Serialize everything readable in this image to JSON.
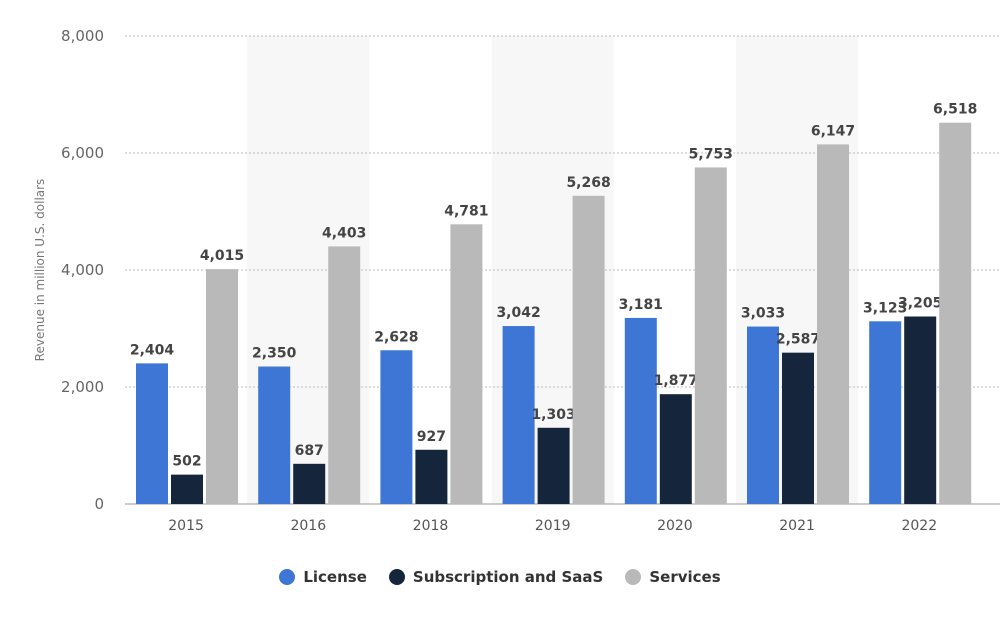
{
  "chart_data": {
    "type": "bar",
    "title": "",
    "xlabel": "",
    "ylabel": "Revenue in million U.S. dollars",
    "ylim": [
      0,
      8000
    ],
    "yticks": [
      0,
      2000,
      4000,
      6000,
      8000
    ],
    "ytick_labels": [
      "0",
      "2,000",
      "4,000",
      "6,000",
      "8,000"
    ],
    "categories": [
      "2015",
      "2016",
      "2018",
      "2019",
      "2020",
      "2021",
      "2022"
    ],
    "series": [
      {
        "name": "License",
        "color": "#3e76d6",
        "values": [
          2404,
          2350,
          2628,
          3042,
          3181,
          3033,
          3123
        ],
        "labels": [
          "2,404",
          "2,350",
          "2,628",
          "3,042",
          "3,181",
          "3,033",
          "3,123"
        ]
      },
      {
        "name": "Subscription and SaaS",
        "color": "#15253c",
        "values": [
          502,
          687,
          927,
          1303,
          1877,
          2587,
          3205
        ],
        "labels": [
          "502",
          "687",
          "927",
          "1,303",
          "1,877",
          "2,587",
          "3,205"
        ]
      },
      {
        "name": "Services",
        "color": "#b9b9b9",
        "values": [
          4015,
          4403,
          4781,
          5268,
          5753,
          6147,
          6518
        ],
        "labels": [
          "4,015",
          "4,403",
          "4,781",
          "5,268",
          "5,753",
          "6,147",
          "6,518"
        ]
      }
    ],
    "grid": true,
    "legend_position": "bottom-center"
  }
}
